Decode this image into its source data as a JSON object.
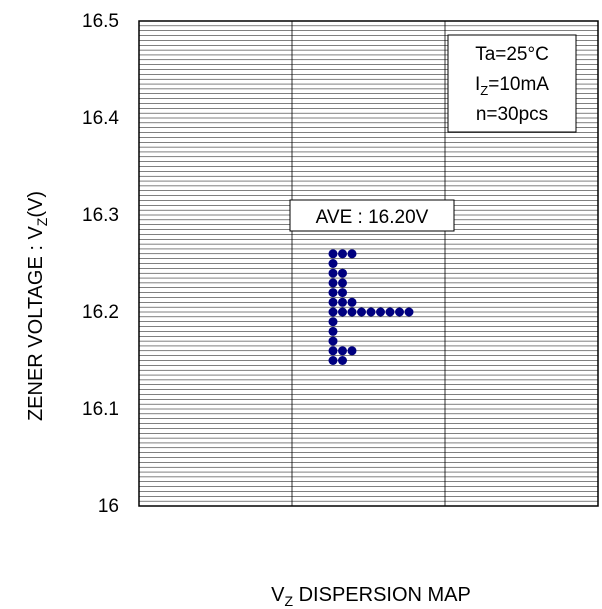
{
  "chart_data": {
    "type": "scatter",
    "title": "",
    "xlabel_main": "V",
    "xlabel_sub": "Z",
    "xlabel_rest": " DISPERSION MAP",
    "ylabel_main": "ZENER VOLTAGE : V",
    "ylabel_sub": "Z",
    "ylabel_rest": "(V)",
    "ylim": [
      16.0,
      16.5
    ],
    "yticks": [
      "16",
      "16.1",
      "16.2",
      "16.3",
      "16.4",
      "16.5"
    ],
    "ytick_values": [
      16.0,
      16.1,
      16.2,
      16.3,
      16.4,
      16.5
    ],
    "minor_grid_step": 0.005,
    "grid": true,
    "conditions": {
      "line1": "Ta=25°C",
      "line2_main": "I",
      "line2_sub": "Z",
      "line2_rest": "=10mA",
      "line3": "n=30pcs"
    },
    "annotation": "AVE : 16.20V",
    "series": [
      {
        "color": "#000080",
        "rows": [
          {
            "v": 16.26,
            "count": 3
          },
          {
            "v": 16.25,
            "count": 1
          },
          {
            "v": 16.24,
            "count": 2
          },
          {
            "v": 16.23,
            "count": 2
          },
          {
            "v": 16.22,
            "count": 2
          },
          {
            "v": 16.21,
            "count": 3
          },
          {
            "v": 16.2,
            "count": 9
          },
          {
            "v": 16.19,
            "count": 1
          },
          {
            "v": 16.18,
            "count": 1
          },
          {
            "v": 16.17,
            "count": 1
          },
          {
            "v": 16.16,
            "count": 3
          },
          {
            "v": 16.15,
            "count": 2
          }
        ]
      }
    ]
  }
}
